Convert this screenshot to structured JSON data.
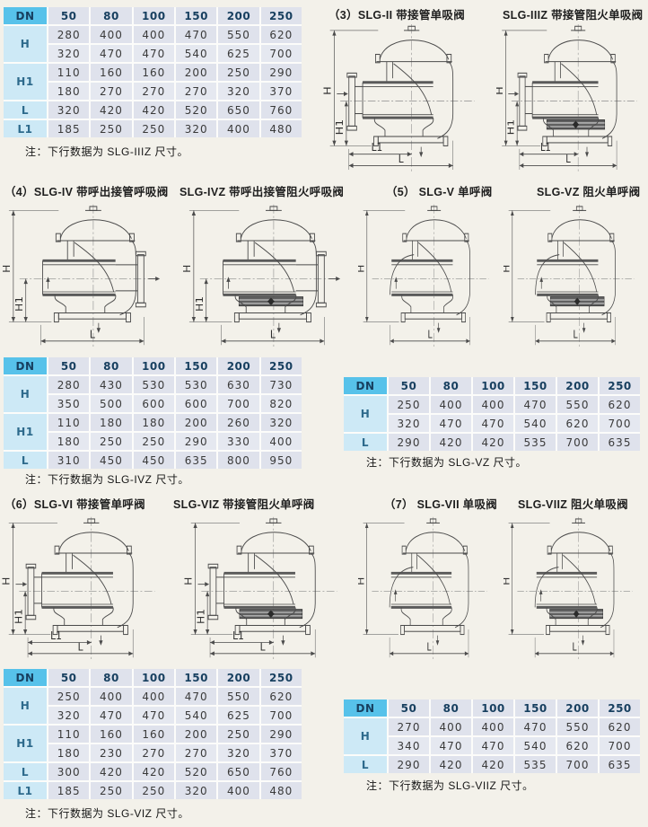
{
  "page": {
    "background": "#f3f1ea"
  },
  "colors": {
    "dn_header_bg": "#57c2ea",
    "row_header_bg": "#cde9f6",
    "cell_bg": "#dfe2ec",
    "line_color": "#4b4b4b"
  },
  "headings": [
    {
      "text": "（3）SLG-II 带接管单吸阀"
    },
    {
      "text": "SLG-IIIZ 带接管阻火单吸阀"
    },
    {
      "text": "（4）SLG-IV 带呼出接管呼吸阀"
    },
    {
      "text": "SLG-IVZ 带呼出接管阻火呼吸阀"
    },
    {
      "text": "（5） SLG-V 单呼阀"
    },
    {
      "text": "SLG-VZ 阻火单呼阀"
    },
    {
      "text": "（6）SLG-VI 带接管单呼阀"
    },
    {
      "text": "SLG-VIZ 带接管阻火单呼阀"
    },
    {
      "text": "（7） SLG-VII 单吸阀"
    },
    {
      "text": "SLG-VIIZ 阻火单吸阀"
    }
  ],
  "tables": {
    "table3": {
      "dn_label": "DN",
      "dn_values": [
        "50",
        "80",
        "100",
        "150",
        "200",
        "250"
      ],
      "rows": [
        {
          "label": "H",
          "lines": [
            [
              "280",
              "400",
              "400",
              "470",
              "550",
              "620"
            ],
            [
              "320",
              "470",
              "470",
              "540",
              "625",
              "700"
            ]
          ]
        },
        {
          "label": "H1",
          "lines": [
            [
              "110",
              "160",
              "160",
              "200",
              "250",
              "290"
            ],
            [
              "180",
              "270",
              "270",
              "270",
              "320",
              "370"
            ]
          ]
        },
        {
          "label": "L",
          "lines": [
            [
              "320",
              "420",
              "420",
              "520",
              "650",
              "760"
            ]
          ]
        },
        {
          "label": "L1",
          "lines": [
            [
              "185",
              "250",
              "250",
              "320",
              "400",
              "480"
            ]
          ]
        }
      ],
      "note": "注：下行数据为 SLG-IIIZ 尺寸。"
    },
    "table4": {
      "dn_label": "DN",
      "dn_values": [
        "50",
        "80",
        "100",
        "150",
        "200",
        "250"
      ],
      "rows": [
        {
          "label": "H",
          "lines": [
            [
              "280",
              "430",
              "530",
              "530",
              "630",
              "730"
            ],
            [
              "350",
              "500",
              "600",
              "600",
              "700",
              "820"
            ]
          ]
        },
        {
          "label": "H1",
          "lines": [
            [
              "110",
              "180",
              "180",
              "200",
              "260",
              "320"
            ],
            [
              "180",
              "250",
              "250",
              "290",
              "330",
              "400"
            ]
          ]
        },
        {
          "label": "L",
          "lines": [
            [
              "310",
              "450",
              "450",
              "635",
              "800",
              "950"
            ]
          ]
        }
      ],
      "note": "注：下行数据为 SLG-IVZ 尺寸。"
    },
    "table5": {
      "dn_label": "DN",
      "dn_values": [
        "50",
        "80",
        "100",
        "150",
        "200",
        "250"
      ],
      "rows": [
        {
          "label": "H",
          "lines": [
            [
              "250",
              "400",
              "400",
              "470",
              "550",
              "620"
            ],
            [
              "320",
              "470",
              "470",
              "540",
              "620",
              "700"
            ]
          ]
        },
        {
          "label": "L",
          "lines": [
            [
              "290",
              "420",
              "420",
              "535",
              "700",
              "635"
            ]
          ]
        }
      ],
      "note": "注：下行数据为 SLG-VZ 尺寸。"
    },
    "table6": {
      "dn_label": "DN",
      "dn_values": [
        "50",
        "80",
        "100",
        "150",
        "200",
        "250"
      ],
      "rows": [
        {
          "label": "H",
          "lines": [
            [
              "250",
              "400",
              "400",
              "470",
              "550",
              "620"
            ],
            [
              "320",
              "470",
              "470",
              "540",
              "625",
              "700"
            ]
          ]
        },
        {
          "label": "H1",
          "lines": [
            [
              "110",
              "160",
              "160",
              "200",
              "250",
              "290"
            ],
            [
              "180",
              "230",
              "270",
              "270",
              "320",
              "370"
            ]
          ]
        },
        {
          "label": "L",
          "lines": [
            [
              "300",
              "420",
              "420",
              "520",
              "650",
              "760"
            ]
          ]
        },
        {
          "label": "L1",
          "lines": [
            [
              "185",
              "250",
              "250",
              "320",
              "400",
              "480"
            ]
          ]
        }
      ],
      "note": "注：下行数据为 SLG-VIZ 尺寸。"
    },
    "table7": {
      "dn_label": "DN",
      "dn_values": [
        "50",
        "80",
        "100",
        "150",
        "200",
        "250"
      ],
      "rows": [
        {
          "label": "H",
          "lines": [
            [
              "270",
              "400",
              "400",
              "470",
              "550",
              "620"
            ],
            [
              "340",
              "470",
              "470",
              "540",
              "620",
              "700"
            ]
          ]
        },
        {
          "label": "L",
          "lines": [
            [
              "290",
              "420",
              "420",
              "535",
              "700",
              "635"
            ]
          ]
        }
      ],
      "note": "注：下行数据为 SLG-VIIZ 尺寸。"
    }
  },
  "figures": [
    {
      "model": "SLG-II",
      "side": "left",
      "variant": "plain",
      "dims": {
        "h": "H",
        "h1": "H1",
        "l": "L",
        "l1": "L1"
      }
    },
    {
      "model": "SLG-IIIZ",
      "side": "left",
      "variant": "arrester",
      "dims": {
        "h": "H",
        "h1": "H1",
        "l": "L",
        "l1": "L1"
      }
    },
    {
      "model": "SLG-IV",
      "side": "right",
      "variant": "plain",
      "dims": {
        "h": "H",
        "h1": "H1",
        "l": "L"
      }
    },
    {
      "model": "SLG-IVZ",
      "side": "right",
      "variant": "arrester",
      "dims": {
        "h": "H",
        "h1": "H1",
        "l": "L"
      }
    },
    {
      "model": "SLG-V",
      "side": "none",
      "variant": "plain",
      "dims": {
        "h": "H",
        "l": "L"
      }
    },
    {
      "model": "SLG-VZ",
      "side": "none",
      "variant": "arrester",
      "dims": {
        "h": "H",
        "l": "L"
      }
    },
    {
      "model": "SLG-VI",
      "side": "left",
      "variant": "plain",
      "dims": {
        "h": "H",
        "h1": "H1",
        "l": "L",
        "l1": "L1"
      }
    },
    {
      "model": "SLG-VIZ",
      "side": "left",
      "variant": "arrester",
      "dims": {
        "h": "H",
        "h1": "H1",
        "l": "L",
        "l1": "L1"
      }
    },
    {
      "model": "SLG-VII",
      "side": "none",
      "variant": "plain",
      "dims": {
        "h": "H",
        "l": "L"
      }
    },
    {
      "model": "SLG-VIIZ",
      "side": "none",
      "variant": "arrester",
      "dims": {
        "h": "H",
        "l": "L"
      }
    }
  ]
}
